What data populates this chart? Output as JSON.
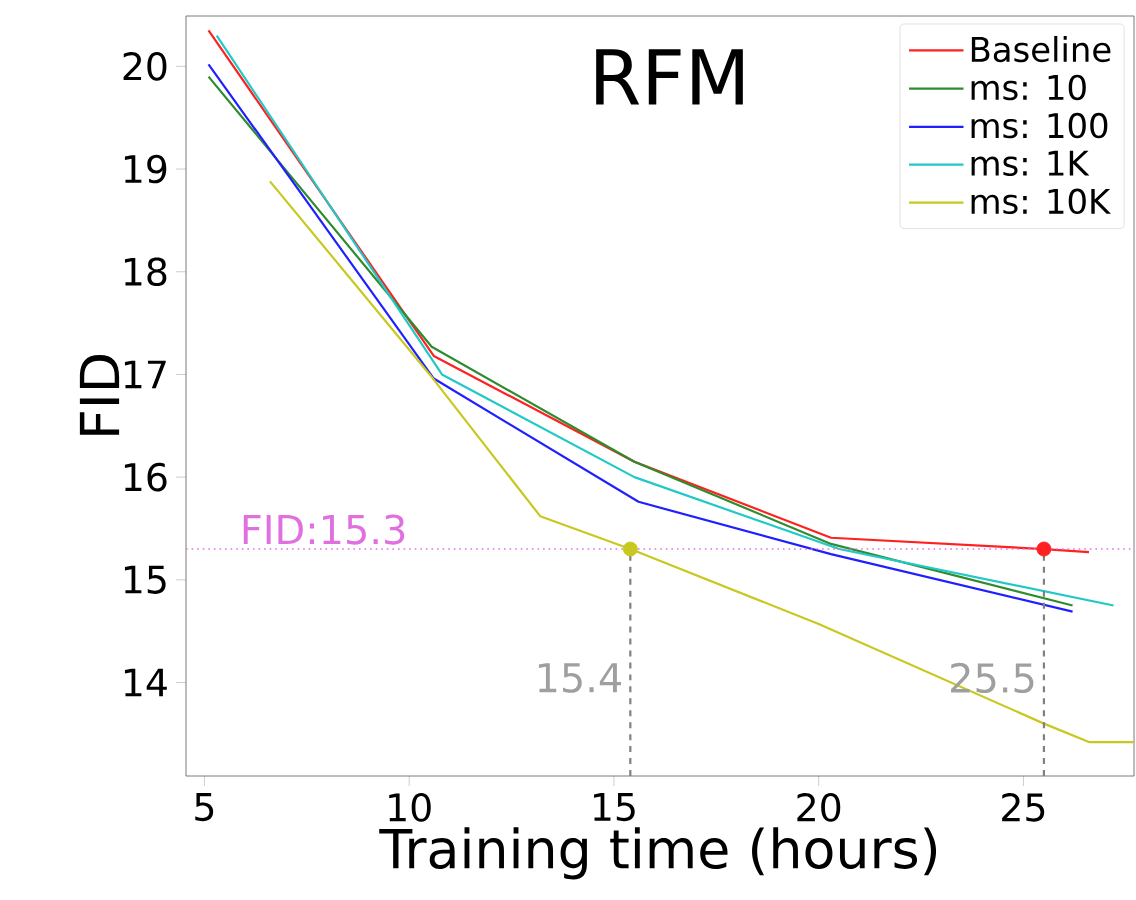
{
  "chart_data": {
    "type": "line",
    "title": "RFM",
    "xlabel": "Training time (hours)",
    "ylabel": "FID",
    "xlim": [
      4.55,
      27.7
    ],
    "ylim": [
      13.09,
      20.49
    ],
    "xticks": [
      5,
      10,
      15,
      20,
      25
    ],
    "yticks": [
      14,
      15,
      16,
      17,
      18,
      19,
      20
    ],
    "legend": "top right",
    "grid": false,
    "marker": "none",
    "line_style": "solid",
    "series": [
      {
        "name": "Baseline",
        "color": "#ff2020",
        "x": [
          5.1,
          10.6,
          15.5,
          20.3,
          25.5,
          26.6
        ],
        "values": [
          20.35,
          17.18,
          16.15,
          15.41,
          15.3,
          15.27
        ]
      },
      {
        "name": "ms: 10",
        "color": "#2e8b2e",
        "x": [
          5.1,
          10.55,
          15.5,
          20.3,
          26.2
        ],
        "values": [
          19.9,
          17.27,
          16.15,
          15.35,
          14.75
        ]
      },
      {
        "name": "ms: 100",
        "color": "#2020ff",
        "x": [
          5.1,
          10.6,
          15.6,
          20.3,
          26.2
        ],
        "values": [
          20.02,
          16.96,
          15.76,
          15.25,
          14.69
        ]
      },
      {
        "name": "ms: 1K",
        "color": "#20c8c8",
        "x": [
          5.3,
          10.8,
          15.5,
          20.5,
          27.2
        ],
        "values": [
          20.3,
          17.0,
          16.0,
          15.3,
          14.75
        ]
      },
      {
        "name": "ms: 10K",
        "color": "#c8c820",
        "x": [
          6.6,
          10.5,
          13.2,
          15.4,
          20.0,
          25.5,
          26.6,
          27.7
        ],
        "values": [
          18.88,
          17.0,
          15.62,
          15.3,
          14.57,
          13.6,
          13.42,
          13.42
        ]
      },
      {
        "line_style": "dashed",
        "color": "#808080",
        "x": [
          15.4,
          15.4
        ],
        "values": [
          13.09,
          15.3
        ]
      },
      {
        "line_style": "dashed",
        "color": "#808080",
        "x": [
          25.5,
          25.5
        ],
        "values": [
          13.09,
          15.3
        ]
      },
      {
        "type": "scatter",
        "marker": "circle",
        "color": "#c8c820",
        "x": [
          15.4
        ],
        "values": [
          15.3
        ]
      },
      {
        "type": "scatter",
        "marker": "circle",
        "color": "#ff2020",
        "x": [
          25.5
        ],
        "values": [
          15.3
        ]
      }
    ],
    "ref_lines": [
      {
        "axis": "y",
        "value": 15.3,
        "label": "FID:15.3",
        "color": "#e070e0",
        "line_style": "dotted"
      }
    ],
    "annotations": [
      {
        "text": "15.4",
        "x": 15.4,
        "y": 15.3
      },
      {
        "text": "25.5",
        "x": 25.5,
        "y": 15.3
      }
    ]
  }
}
